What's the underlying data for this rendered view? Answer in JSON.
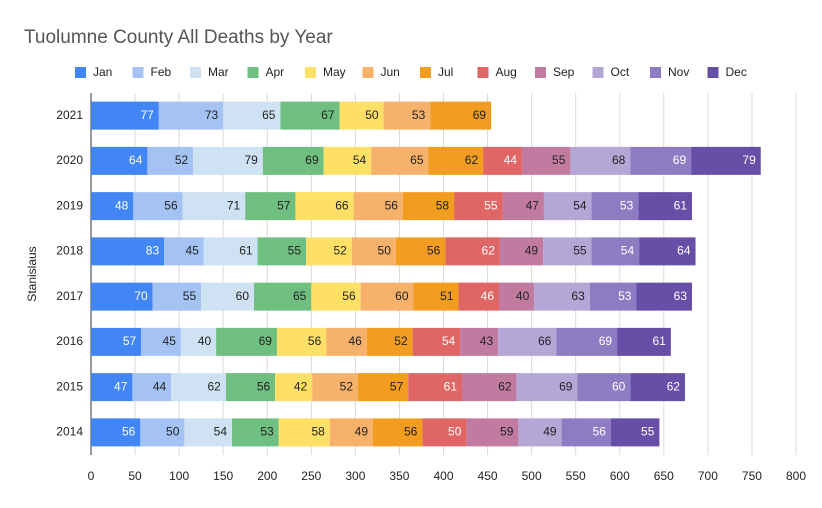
{
  "chart_data": {
    "type": "stacked-bar-horizontal",
    "title": "Tuolumne County All Deaths by Year",
    "y_label": "Stanislaus",
    "categories": [
      "2021",
      "2020",
      "2019",
      "2018",
      "2017",
      "2016",
      "2015",
      "2014"
    ],
    "series": [
      {
        "name": "Jan",
        "color": "#4285f4",
        "values": [
          77,
          64,
          48,
          83,
          70,
          57,
          47,
          56
        ]
      },
      {
        "name": "Feb",
        "color": "#a4c2f4",
        "values": [
          73,
          52,
          56,
          45,
          55,
          45,
          44,
          50
        ]
      },
      {
        "name": "Mar",
        "color": "#cfe2f3",
        "values": [
          65,
          79,
          71,
          61,
          60,
          40,
          62,
          54
        ]
      },
      {
        "name": "Apr",
        "color": "#6fbf80",
        "values": [
          67,
          69,
          57,
          55,
          65,
          69,
          56,
          53
        ]
      },
      {
        "name": "May",
        "color": "#ffe066",
        "values": [
          50,
          54,
          66,
          52,
          56,
          56,
          42,
          58
        ]
      },
      {
        "name": "Jun",
        "color": "#f6b26b",
        "values": [
          53,
          65,
          56,
          50,
          60,
          46,
          52,
          49
        ]
      },
      {
        "name": "Jul",
        "color": "#f29d1f",
        "values": [
          69,
          62,
          58,
          56,
          51,
          52,
          57,
          56
        ]
      },
      {
        "name": "Aug",
        "color": "#e06666",
        "values": [
          null,
          44,
          55,
          62,
          46,
          54,
          61,
          50
        ]
      },
      {
        "name": "Sep",
        "color": "#c27ba0",
        "values": [
          null,
          55,
          47,
          49,
          40,
          43,
          62,
          59
        ]
      },
      {
        "name": "Oct",
        "color": "#b4a7d6",
        "values": [
          null,
          68,
          54,
          55,
          63,
          66,
          69,
          49
        ]
      },
      {
        "name": "Nov",
        "color": "#8e7cc3",
        "values": [
          null,
          69,
          53,
          54,
          53,
          69,
          60,
          56
        ]
      },
      {
        "name": "Dec",
        "color": "#674ea7",
        "values": [
          null,
          79,
          61,
          64,
          63,
          61,
          62,
          55
        ]
      }
    ],
    "xlim": [
      0,
      800
    ],
    "xticks": [
      0,
      50,
      100,
      150,
      200,
      250,
      300,
      350,
      400,
      450,
      500,
      550,
      600,
      650,
      700,
      750,
      800
    ],
    "grid": true
  }
}
